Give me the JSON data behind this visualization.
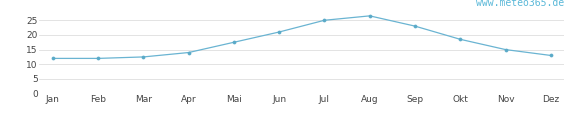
{
  "months": [
    "Jan",
    "Feb",
    "Mar",
    "Apr",
    "Mai",
    "Jun",
    "Jul",
    "Aug",
    "Sep",
    "Okt",
    "Nov",
    "Dez"
  ],
  "values": [
    12.0,
    12.0,
    12.5,
    14.0,
    17.5,
    21.0,
    25.0,
    26.5,
    23.0,
    18.5,
    15.0,
    13.0
  ],
  "line_color": "#6ab4d2",
  "marker_color": "#5aaac8",
  "ylim": [
    0,
    27
  ],
  "yticks": [
    0,
    5,
    10,
    15,
    20,
    25
  ],
  "ytick_labels": [
    "0",
    "5",
    "10",
    "15",
    "20",
    "25"
  ],
  "background_color": "#ffffff",
  "watermark": "www.meteo365.de",
  "watermark_color": "#5ab8d8",
  "tick_label_fontsize": 6.5,
  "watermark_fontsize": 7,
  "figsize": [
    5.76,
    1.2
  ],
  "dpi": 100
}
